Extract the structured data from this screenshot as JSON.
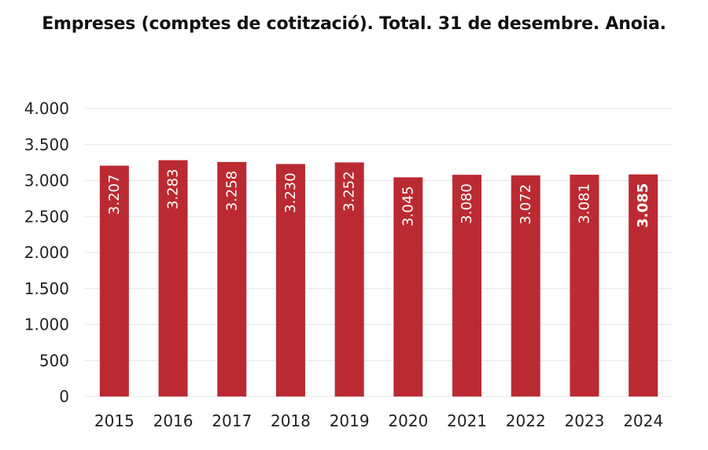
{
  "chart_data": {
    "type": "bar",
    "title": "Empreses (comptes de cotització). Total. 31 de desembre. Anoia.",
    "xlabel": "",
    "ylabel": "",
    "categories": [
      "2015",
      "2016",
      "2017",
      "2018",
      "2019",
      "2020",
      "2021",
      "2022",
      "2023",
      "2024"
    ],
    "values": [
      3207,
      3283,
      3258,
      3230,
      3252,
      3045,
      3080,
      3072,
      3081,
      3085
    ],
    "value_labels": [
      "3.207",
      "3.283",
      "3.258",
      "3.230",
      "3.252",
      "3.045",
      "3.080",
      "3.072",
      "3.081",
      "3.085"
    ],
    "highlight_index": 9,
    "ylim": [
      0,
      4000
    ],
    "yticks": [
      0,
      500,
      1000,
      1500,
      2000,
      2500,
      3000,
      3500,
      4000
    ],
    "ytick_labels": [
      "0",
      "500",
      "1.000",
      "1.500",
      "2.000",
      "2.500",
      "3.000",
      "3.500",
      "4.000"
    ],
    "grid": true,
    "legend": "none",
    "bar_color": "#BB2A32",
    "grid_color": "#E6E6E6"
  }
}
